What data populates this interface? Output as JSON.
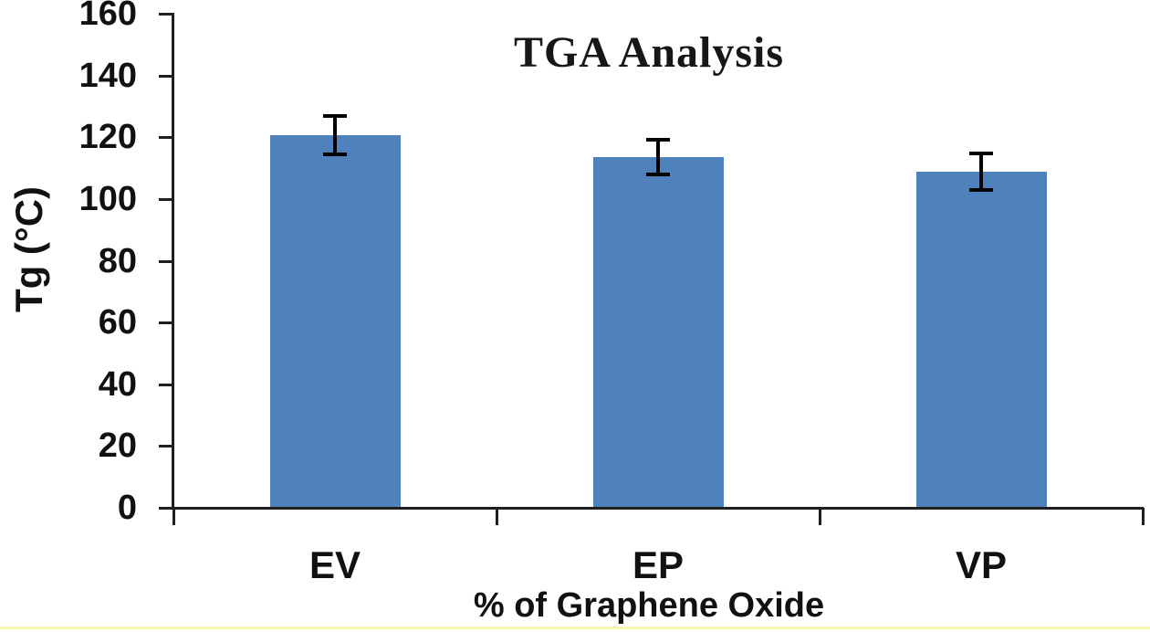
{
  "page": {
    "background": "#ffffff"
  },
  "chart_data": {
    "type": "bar",
    "title": "TGA Analysis",
    "xlabel": "% of Graphene Oxide",
    "ylabel": "Tg (°C)",
    "categories": [
      "EV",
      "EP",
      "VP"
    ],
    "values": [
      120.7,
      113.6,
      108.9
    ],
    "error_bars": [
      6.3,
      5.6,
      5.9
    ],
    "ylim": [
      0,
      160
    ],
    "yticks": [
      0,
      20,
      40,
      60,
      80,
      100,
      120,
      140,
      160
    ],
    "grid": false,
    "legend": false,
    "bar_color": "#4f81bd",
    "axis_color": "#1f1f1f",
    "error_color": "#000000",
    "text_color": "#111111",
    "bottom_accent_color": "#f7f7ad"
  }
}
